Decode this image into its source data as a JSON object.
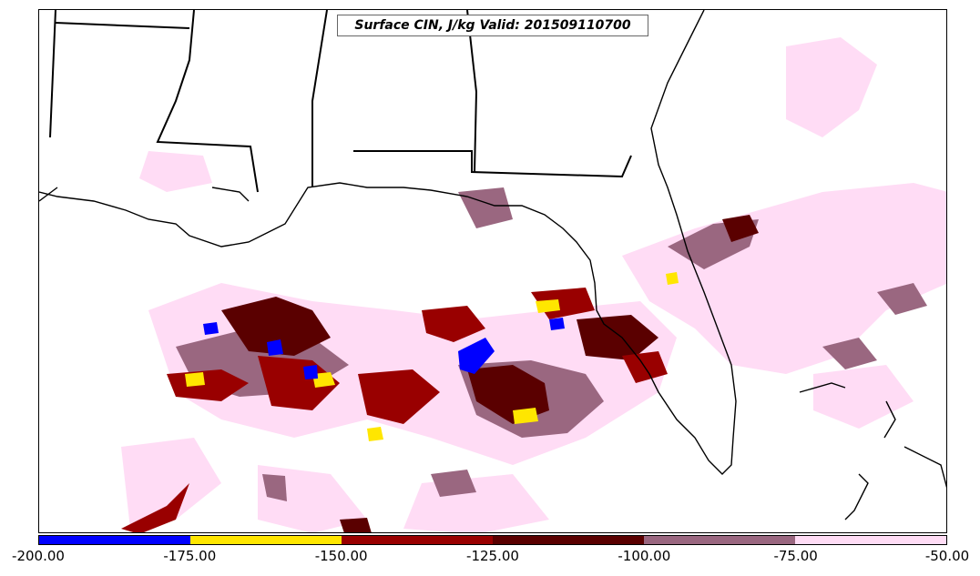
{
  "title": "Surface CIN, J/kg Valid: 201509110700",
  "colorbar": {
    "segments": [
      {
        "color": "#0000ff"
      },
      {
        "color": "#ffe600"
      },
      {
        "color": "#990000"
      },
      {
        "color": "#5a0000"
      },
      {
        "color": "#9a6780"
      },
      {
        "color": "#ffdcf5"
      }
    ],
    "tick_labels": [
      "-200.00",
      "-175.00",
      "-150.00",
      "-125.00",
      "-100.00",
      "-75.00",
      "-50.00"
    ]
  },
  "map": {
    "region": "Gulf of Mexico / southeastern United States",
    "projection": "lat-lon",
    "boundaries": [
      "state borders",
      "coastlines"
    ]
  }
}
